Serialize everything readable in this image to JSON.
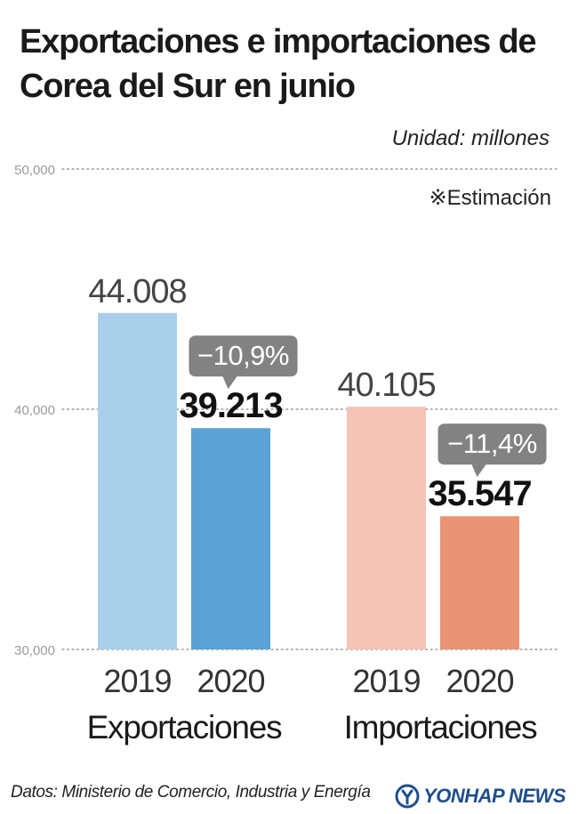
{
  "header": {
    "title_line1": "Exportaciones e importaciones de",
    "title_line2": "Corea del Sur en junio",
    "unit": "Unidad: millones",
    "note": "※Estimación"
  },
  "footer": {
    "source": "Datos: Ministerio de Comercio, Industria y Energía",
    "logo": "YONHAP NEWS"
  },
  "colors": {
    "exports_2019": "#a9cfea",
    "exports_2020": "#5aa2d6",
    "imports_2019": "#f4c4b5",
    "imports_2020": "#eb9375",
    "callout": "#828282",
    "grid": "#9a9a9a",
    "logo": "#1f4e8c"
  },
  "chart_data": {
    "type": "bar",
    "title": "Exportaciones e importaciones de Corea del Sur en junio",
    "ylim": [
      30000,
      50000
    ],
    "yticks": [
      30000,
      40000,
      50000
    ],
    "ytick_labels": [
      "30,000",
      "40,000",
      "50,000"
    ],
    "grid": true,
    "groups": [
      {
        "name": "Exportaciones",
        "bars": [
          {
            "year": "2019",
            "value": 44008,
            "label": "44.008",
            "color": "#a9cfea",
            "bold": false
          },
          {
            "year": "2020",
            "value": 39213,
            "label": "39.213",
            "color": "#5aa2d6",
            "bold": true
          }
        ],
        "change": "−10,9%"
      },
      {
        "name": "Importaciones",
        "bars": [
          {
            "year": "2019",
            "value": 40105,
            "label": "40.105",
            "color": "#f4c4b5",
            "bold": false
          },
          {
            "year": "2020",
            "value": 35547,
            "label": "35.547",
            "color": "#eb9375",
            "bold": true
          }
        ],
        "change": "−11,4%"
      }
    ]
  }
}
